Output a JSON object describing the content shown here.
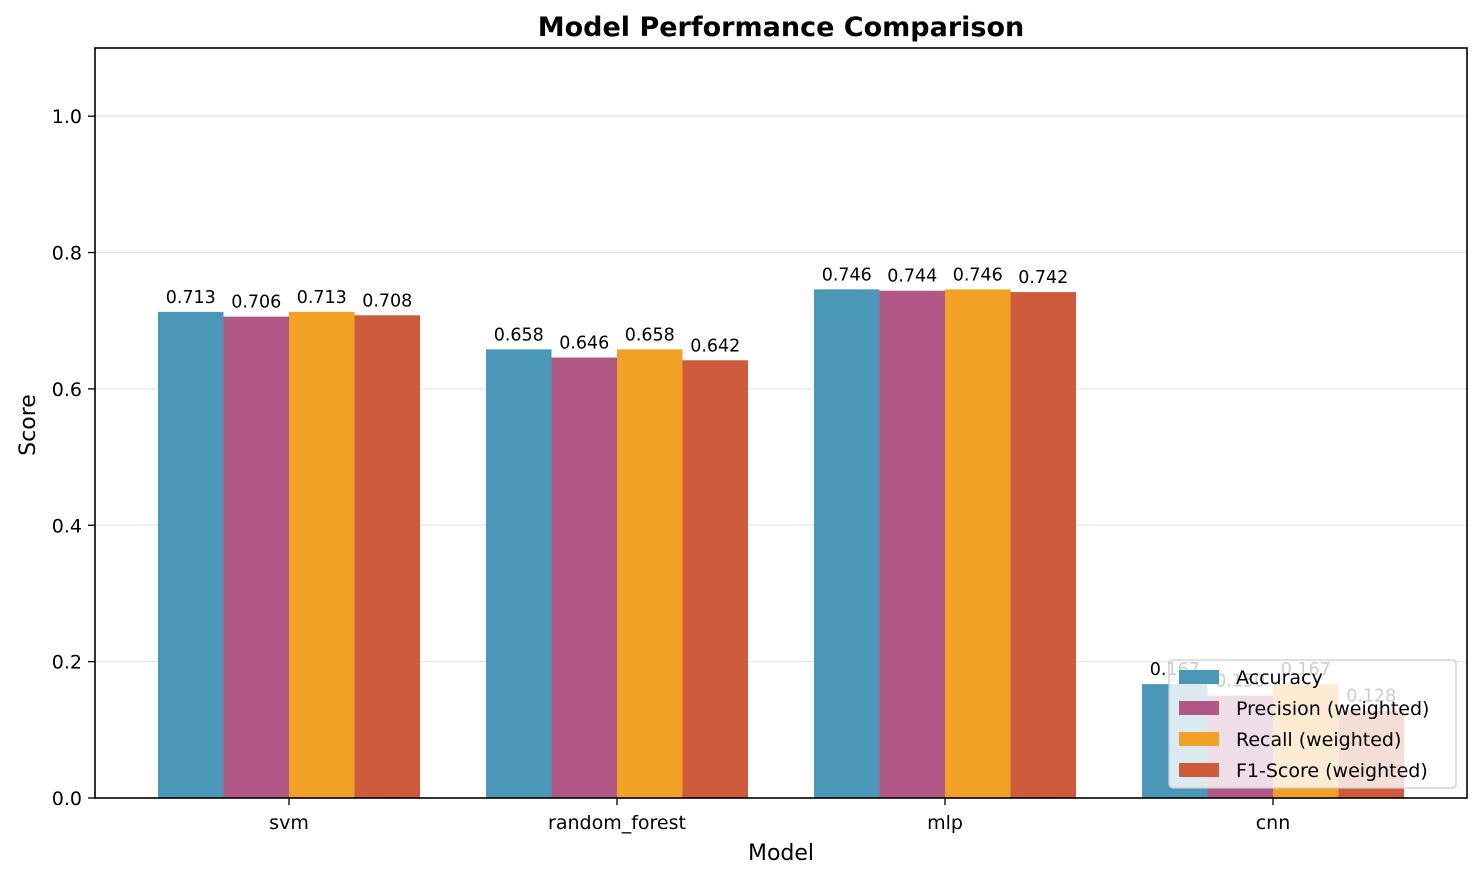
{
  "chart_data": {
    "type": "bar",
    "title": "Model Performance Comparison",
    "xlabel": "Model",
    "ylabel": "Score",
    "ylim": [
      0,
      1.1
    ],
    "yticks": [
      0.0,
      0.2,
      0.4,
      0.6,
      0.8,
      1.0
    ],
    "ytick_labels": [
      "0.0",
      "0.2",
      "0.4",
      "0.6",
      "0.8",
      "1.0"
    ],
    "grid": "y",
    "legend": "lower-right",
    "categories": [
      "svm",
      "random_forest",
      "mlp",
      "cnn"
    ],
    "series": [
      {
        "name": "Accuracy",
        "color": "#4b97b8",
        "values": [
          0.713,
          0.658,
          0.746,
          0.167
        ],
        "labels": [
          "0.713",
          "0.658",
          "0.746",
          "0.167"
        ]
      },
      {
        "name": "Precision (weighted)",
        "color": "#b05785",
        "values": [
          0.706,
          0.646,
          0.744,
          0.15
        ],
        "labels": [
          "0.706",
          "0.646",
          "0.744",
          "0.150"
        ]
      },
      {
        "name": "Recall (weighted)",
        "color": "#f2a127",
        "values": [
          0.713,
          0.658,
          0.746,
          0.167
        ],
        "labels": [
          "0.713",
          "0.658",
          "0.746",
          "0.167"
        ]
      },
      {
        "name": "F1-Score (weighted)",
        "color": "#cf5b3d",
        "values": [
          0.708,
          0.642,
          0.742,
          0.128
        ],
        "labels": [
          "0.708",
          "0.642",
          "0.742",
          "0.128"
        ]
      }
    ]
  }
}
